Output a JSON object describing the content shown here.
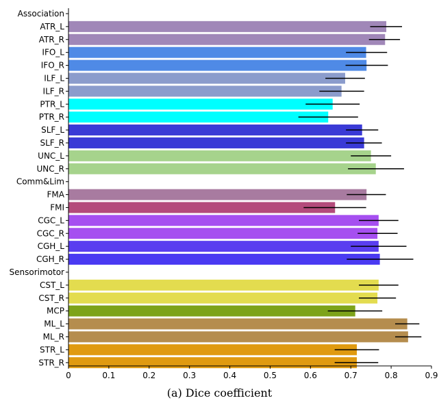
{
  "chart_data": {
    "type": "bar",
    "orientation": "horizontal",
    "caption": "(a)  Dice coefficient",
    "xlim": [
      0,
      0.9
    ],
    "xticks": [
      "0",
      "0.1",
      "0.2",
      "0.3",
      "0.4",
      "0.5",
      "0.6",
      "0.7",
      "0.8",
      "0.9"
    ],
    "grid": false,
    "rows": [
      {
        "label": "Association",
        "group": true
      },
      {
        "label": "ATR_L",
        "value": 0.788,
        "err": [
          0.748,
          0.827
        ],
        "color": "#a087b8"
      },
      {
        "label": "ATR_R",
        "value": 0.785,
        "err": [
          0.745,
          0.822
        ],
        "color": "#a087b8"
      },
      {
        "label": "IFO_L",
        "value": 0.738,
        "err": [
          0.688,
          0.79
        ],
        "color": "#4f8ae6"
      },
      {
        "label": "IFO_R",
        "value": 0.739,
        "err": [
          0.687,
          0.792
        ],
        "color": "#4f8ae6"
      },
      {
        "label": "ILF_L",
        "value": 0.686,
        "err": [
          0.637,
          0.735
        ],
        "color": "#8b9ccc"
      },
      {
        "label": "ILF_R",
        "value": 0.677,
        "err": [
          0.622,
          0.733
        ],
        "color": "#8b9ccc"
      },
      {
        "label": "PTR_L",
        "value": 0.655,
        "err": [
          0.588,
          0.722
        ],
        "color": "#00ffff"
      },
      {
        "label": "PTR_R",
        "value": 0.644,
        "err": [
          0.57,
          0.718
        ],
        "color": "#00ffff"
      },
      {
        "label": "SLF_L",
        "value": 0.728,
        "err": [
          0.688,
          0.768
        ],
        "color": "#3a3ad6"
      },
      {
        "label": "SLF_R",
        "value": 0.733,
        "err": [
          0.688,
          0.777
        ],
        "color": "#3a3ad6"
      },
      {
        "label": "UNC_L",
        "value": 0.75,
        "err": [
          0.7,
          0.8
        ],
        "color": "#a6d38c"
      },
      {
        "label": "UNC_R",
        "value": 0.762,
        "err": [
          0.693,
          0.832
        ],
        "color": "#a6d38c"
      },
      {
        "label": "Comm&Lim",
        "group": true
      },
      {
        "label": "FMA",
        "value": 0.739,
        "err": [
          0.69,
          0.787
        ],
        "color": "#a87ba0"
      },
      {
        "label": "FMI",
        "value": 0.661,
        "err": [
          0.583,
          0.738
        ],
        "color": "#b44b7b"
      },
      {
        "label": "CGC_L",
        "value": 0.769,
        "err": [
          0.72,
          0.818
        ],
        "color": "#a64ff0"
      },
      {
        "label": "CGC_R",
        "value": 0.766,
        "err": [
          0.717,
          0.816
        ],
        "color": "#a64ff0"
      },
      {
        "label": "CGH_L",
        "value": 0.769,
        "err": [
          0.7,
          0.838
        ],
        "color": "#5a3ef0"
      },
      {
        "label": "CGH_R",
        "value": 0.772,
        "err": [
          0.69,
          0.855
        ],
        "color": "#4a3af2"
      },
      {
        "label": "Sensorimotor",
        "group": true
      },
      {
        "label": "CST_L",
        "value": 0.769,
        "err": [
          0.72,
          0.818
        ],
        "color": "#e3dc4f"
      },
      {
        "label": "CST_R",
        "value": 0.766,
        "err": [
          0.72,
          0.812
        ],
        "color": "#e3dc4f"
      },
      {
        "label": "MCP",
        "value": 0.711,
        "err": [
          0.643,
          0.778
        ],
        "color": "#7da31a"
      },
      {
        "label": "ML_L",
        "value": 0.84,
        "err": [
          0.81,
          0.87
        ],
        "color": "#b58d4e"
      },
      {
        "label": "ML_R",
        "value": 0.842,
        "err": [
          0.81,
          0.875
        ],
        "color": "#b58d4e"
      },
      {
        "label": "STR_L",
        "value": 0.715,
        "err": [
          0.66,
          0.77
        ],
        "color": "#e09a10"
      },
      {
        "label": "STR_R",
        "value": 0.715,
        "err": [
          0.66,
          0.768
        ],
        "color": "#e09a10"
      }
    ]
  }
}
